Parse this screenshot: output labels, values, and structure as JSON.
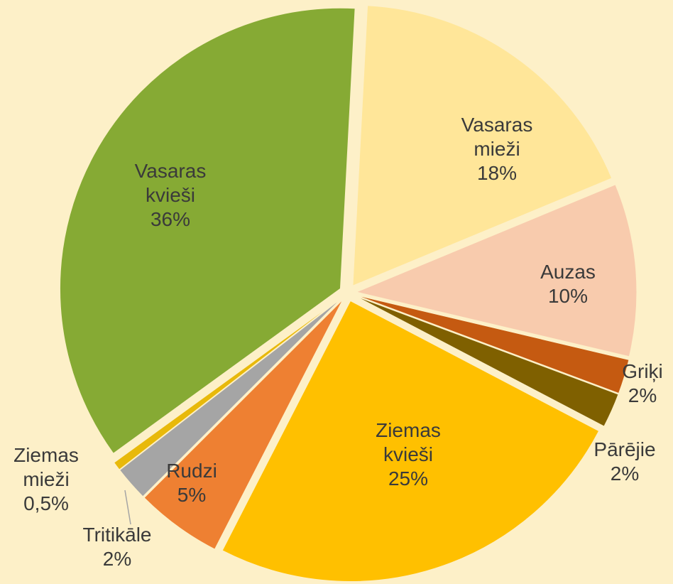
{
  "chart_data": {
    "type": "pie",
    "categories": [
      "Vasaras mieži",
      "Auzas",
      "Griķi",
      "Pārējie",
      "Ziemas kvieši",
      "Rudzi",
      "Tritikāle",
      "Ziemas mieži",
      "Vasaras kvieši"
    ],
    "values": [
      18,
      10,
      2,
      2,
      25,
      5,
      2,
      0.5,
      36
    ],
    "value_labels": [
      "18%",
      "10%",
      "2%",
      "2%",
      "25%",
      "5%",
      "2%",
      "0,5%",
      "36%"
    ],
    "colors": [
      "#ffe699",
      "#f8cbad",
      "#c55a11",
      "#7f6000",
      "#ffc000",
      "#ee8032",
      "#a5a5a5",
      "#e8b90a",
      "#86aa34"
    ]
  }
}
